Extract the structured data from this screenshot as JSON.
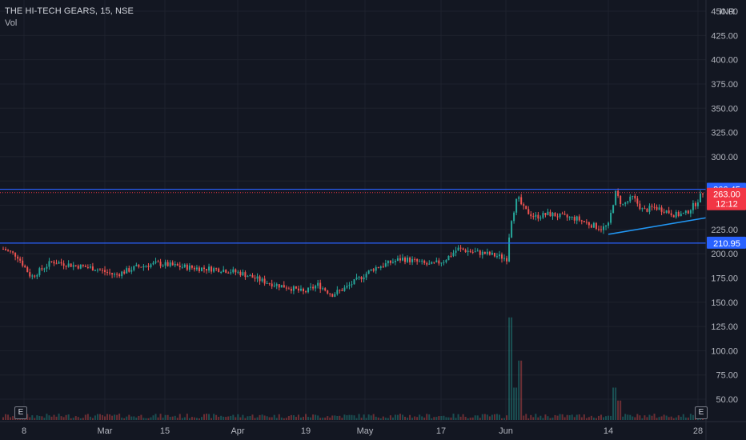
{
  "header": {
    "title": "THE HI-TECH GEARS, 15, NSE",
    "indicator": "Vol",
    "currency": "INR"
  },
  "badges": {
    "earnings_left": "E",
    "earnings_right": "E"
  },
  "colors": {
    "background": "#131722",
    "grid": "#1e222d",
    "axis_text": "#b2b5be",
    "up": "#26a69a",
    "down": "#ef5350",
    "hline": "#2962ff",
    "trendline": "#2196f3",
    "price_tag": "#f23645",
    "level_tag": "#2962ff"
  },
  "chart_data": {
    "type": "candlestick",
    "title": "THE HI-TECH GEARS, 15, NSE",
    "ylim": [
      0,
      450
    ],
    "y_axis_ticks": [
      50,
      75,
      100,
      125,
      150,
      175,
      200,
      225,
      250,
      275,
      300,
      325,
      350,
      375,
      400,
      425,
      450
    ],
    "y_axis_labels": [
      "50.00",
      "75.00",
      "100.00",
      "125.00",
      "150.00",
      "175.00",
      "200.00",
      "225.00",
      "",
      "",
      "300.00",
      "325.00",
      "350.00",
      "375.00",
      "400.00",
      "425.00",
      "450.00"
    ],
    "x_axis_labels": [
      "8",
      "Mar",
      "15",
      "Apr",
      "19",
      "May",
      "17",
      "Jun",
      "14",
      "28"
    ],
    "grid": true,
    "horizontal_levels": [
      {
        "value": 266.45,
        "label": "266.45"
      },
      {
        "value": 210.95,
        "label": "210.95"
      }
    ],
    "current_price": {
      "value": 263.0,
      "label": "263.00",
      "countdown": "12:12"
    },
    "trendline": {
      "from": {
        "x_label": "14",
        "y": 220
      },
      "to": {
        "x_label": "28",
        "y": 237
      }
    },
    "price_path": [
      {
        "t": 0.0,
        "p": 205
      },
      {
        "t": 0.02,
        "p": 198
      },
      {
        "t": 0.04,
        "p": 176
      },
      {
        "t": 0.07,
        "p": 192
      },
      {
        "t": 0.1,
        "p": 188
      },
      {
        "t": 0.13,
        "p": 185
      },
      {
        "t": 0.16,
        "p": 178
      },
      {
        "t": 0.19,
        "p": 186
      },
      {
        "t": 0.22,
        "p": 190
      },
      {
        "t": 0.25,
        "p": 187
      },
      {
        "t": 0.28,
        "p": 185
      },
      {
        "t": 0.31,
        "p": 184
      },
      {
        "t": 0.34,
        "p": 180
      },
      {
        "t": 0.37,
        "p": 172
      },
      {
        "t": 0.39,
        "p": 168
      },
      {
        "t": 0.41,
        "p": 165
      },
      {
        "t": 0.43,
        "p": 160
      },
      {
        "t": 0.45,
        "p": 168
      },
      {
        "t": 0.47,
        "p": 158
      },
      {
        "t": 0.49,
        "p": 165
      },
      {
        "t": 0.51,
        "p": 175
      },
      {
        "t": 0.53,
        "p": 185
      },
      {
        "t": 0.55,
        "p": 190
      },
      {
        "t": 0.57,
        "p": 195
      },
      {
        "t": 0.59,
        "p": 192
      },
      {
        "t": 0.61,
        "p": 188
      },
      {
        "t": 0.63,
        "p": 193
      },
      {
        "t": 0.65,
        "p": 205
      },
      {
        "t": 0.67,
        "p": 202
      },
      {
        "t": 0.69,
        "p": 200
      },
      {
        "t": 0.71,
        "p": 197
      },
      {
        "t": 0.72,
        "p": 195
      },
      {
        "t": 0.725,
        "p": 232
      },
      {
        "t": 0.735,
        "p": 258
      },
      {
        "t": 0.745,
        "p": 245
      },
      {
        "t": 0.76,
        "p": 238
      },
      {
        "t": 0.78,
        "p": 241
      },
      {
        "t": 0.8,
        "p": 238
      },
      {
        "t": 0.82,
        "p": 236
      },
      {
        "t": 0.84,
        "p": 230
      },
      {
        "t": 0.855,
        "p": 226
      },
      {
        "t": 0.865,
        "p": 229
      },
      {
        "t": 0.875,
        "p": 263
      },
      {
        "t": 0.885,
        "p": 250
      },
      {
        "t": 0.9,
        "p": 258
      },
      {
        "t": 0.915,
        "p": 244
      },
      {
        "t": 0.93,
        "p": 248
      },
      {
        "t": 0.945,
        "p": 245
      },
      {
        "t": 0.96,
        "p": 240
      },
      {
        "t": 0.975,
        "p": 241
      },
      {
        "t": 0.99,
        "p": 252
      },
      {
        "t": 1.0,
        "p": 263
      }
    ],
    "volume_spikes": [
      {
        "t": 0.725,
        "v": 95
      },
      {
        "t": 0.733,
        "v": 30
      },
      {
        "t": 0.74,
        "v": 55
      },
      {
        "t": 0.875,
        "v": 30
      },
      {
        "t": 0.88,
        "v": 18
      }
    ]
  }
}
